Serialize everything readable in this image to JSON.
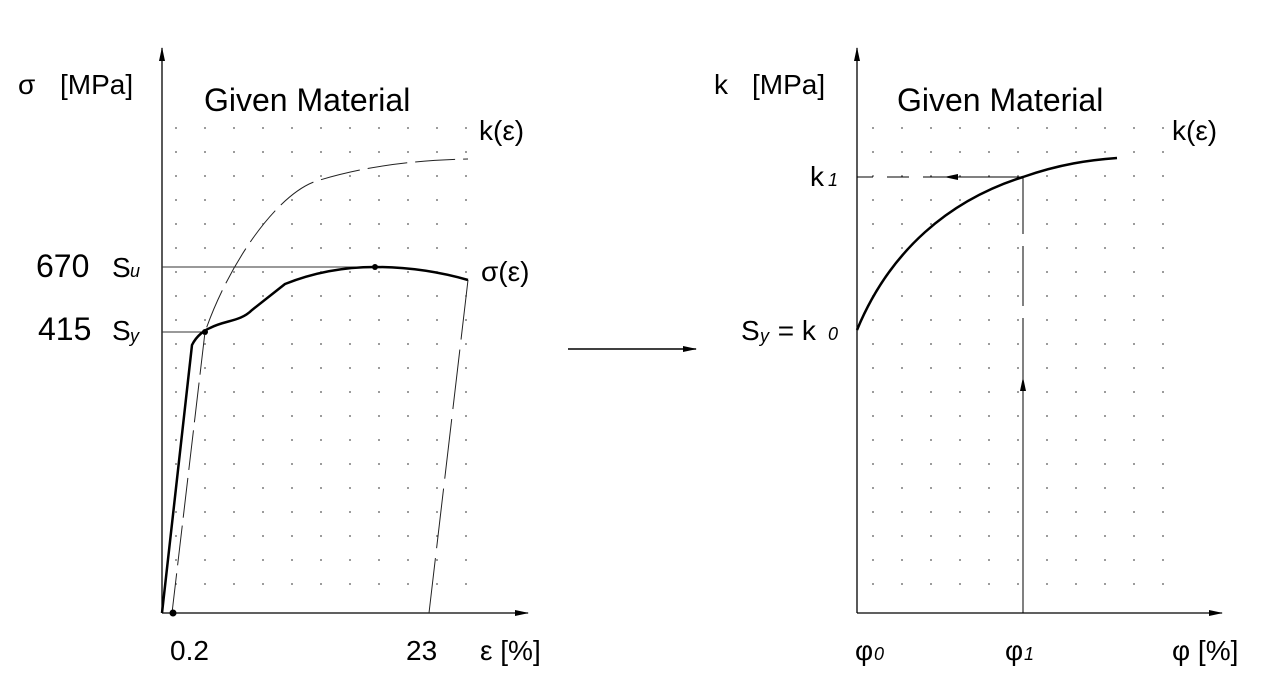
{
  "left_diagram": {
    "y_axis_symbol": "σ",
    "y_axis_unit": "[MPa]",
    "title": "Given Material",
    "curve_k_label": "k(ε)",
    "curve_sigma_label": "σ(ε)",
    "su_value": "670",
    "su_symbol": "S",
    "su_subscript": "u",
    "sy_value": "415",
    "sy_symbol": "S",
    "sy_subscript": "y",
    "x_tick_1": "0.2",
    "x_tick_2": "23",
    "x_axis_label": "ε [%]"
  },
  "right_diagram": {
    "y_axis_symbol": "k",
    "y_axis_unit": "[MPa]",
    "title": "Given Material",
    "curve_label": "k(ε)",
    "k1_symbol": "k",
    "k1_subscript": "1",
    "k0_prefix": "S",
    "k0_prefix_subscript": "y",
    "k0_eq": " = k",
    "k0_subscript": "0",
    "phi0_symbol": "φ",
    "phi0_subscript": "0",
    "phi1_symbol": "φ",
    "phi1_subscript": "1",
    "x_axis_label": "φ [%]"
  },
  "colors": {
    "line": "#000000",
    "grid": "#555555",
    "background": "#ffffff"
  }
}
